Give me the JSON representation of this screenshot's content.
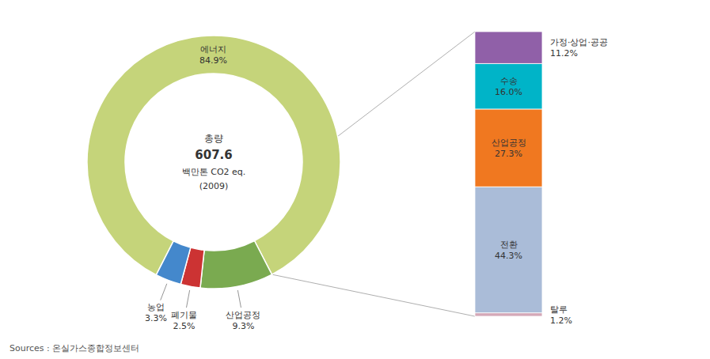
{
  "chart_data": [
    {
      "type": "pie",
      "categories": [
        "에너지",
        "산업공정",
        "폐기물",
        "농업"
      ],
      "values": [
        84.9,
        9.3,
        2.5,
        3.3
      ],
      "value_labels": [
        "84.9%",
        "9.3%",
        "2.5%",
        "3.3%"
      ],
      "colors": [
        "#c5d47a",
        "#7aaa50",
        "#cc3333",
        "#4488cc"
      ],
      "data_labels": true,
      "annotations": [
        "총량",
        "607.6",
        "백만톤 CO2 eq.",
        "(2009)"
      ]
    },
    {
      "type": "bar",
      "stacked": true,
      "categories": [
        null
      ],
      "series": [
        {
          "name": "탈루",
          "color": "#d4a8b8",
          "values": [
            1.2
          ],
          "value_labels": [
            "1.2%"
          ]
        },
        {
          "name": "전환",
          "color": "#aabcd8",
          "values": [
            44.3
          ],
          "value_labels": [
            "44.3%"
          ]
        },
        {
          "name": "산업공정",
          "color": "#f07820",
          "values": [
            27.3
          ],
          "value_labels": [
            "27.3%"
          ]
        },
        {
          "name": "수송",
          "color": "#00b4c8",
          "values": [
            16.0
          ],
          "value_labels": [
            "16.0%"
          ]
        },
        {
          "name": "가정·상업·공공",
          "color": "#9060a8",
          "values": [
            11.2
          ],
          "value_labels": [
            "11.2%"
          ]
        }
      ],
      "ylim": [
        0,
        100
      ],
      "tick_labels": false,
      "data_labels": true,
      "annotations": [
        "Sources : 온실가스종합정보센터"
      ]
    }
  ]
}
